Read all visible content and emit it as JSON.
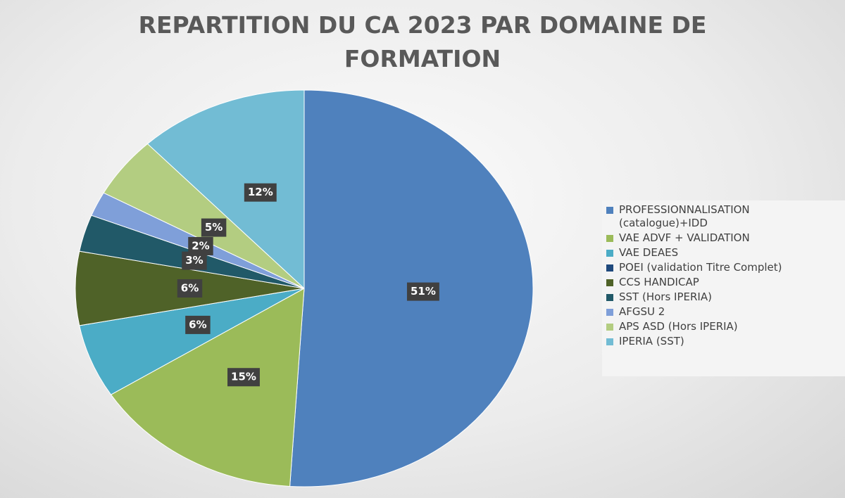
{
  "chart_data": {
    "type": "pie",
    "title": "REPARTITION DU CA 2023 PAR DOMAINE DE FORMATION",
    "categories": [
      "PROFESSIONNALISATION (catalogue)+IDD",
      "VAE  ADVF + VALIDATION",
      "VAE  DEAES",
      "POEI (validation Titre Complet)",
      "CCS HANDICAP",
      "SST (Hors IPERIA)",
      "AFGSU 2",
      "APS ASD (Hors IPERIA)",
      "IPERIA (SST)"
    ],
    "values": [
      51,
      15,
      6,
      0,
      6,
      3,
      2,
      5,
      12
    ],
    "value_labels": [
      "51%",
      "15%",
      "6%",
      null,
      "6%",
      "3%",
      "2%",
      "5%",
      "12%"
    ],
    "colors": [
      "#4f81bd",
      "#9bbb59",
      "#4bacc6",
      "#1f497d",
      "#4f6228",
      "#215968",
      "#7f9fd9",
      "#b3cd81",
      "#72bcd4"
    ],
    "legend": "right"
  }
}
